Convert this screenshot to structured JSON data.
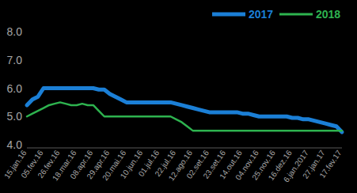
{
  "chart_data": {
    "type": "line",
    "categories": [
      "15.jan.16",
      null,
      null,
      "05.fev.16",
      null,
      null,
      "26.fev.16",
      null,
      null,
      "18.mar.16",
      null,
      null,
      "08.apr.16",
      null,
      null,
      "29.apr.16",
      null,
      null,
      "20.mai.16",
      null,
      null,
      "10.jun.16",
      null,
      null,
      "01.jul.16",
      null,
      null,
      "22.jul.16",
      null,
      null,
      "12.ago.16",
      null,
      null,
      "02.set.16",
      null,
      null,
      "23.set.16",
      null,
      null,
      "14.out.16",
      null,
      null,
      "04.nov.16",
      null,
      null,
      "25.nov.16",
      null,
      null,
      "16.dez.16",
      null,
      null,
      "6.jan.2017",
      null,
      null,
      "27.jan.17",
      null,
      null,
      "17.fev.17"
    ],
    "series": [
      {
        "name": "2017",
        "color": "#1b7fd6",
        "values": [
          5.4,
          5.6,
          5.7,
          6.0,
          6.0,
          6.0,
          6.0,
          6.0,
          6.0,
          6.0,
          6.0,
          6.0,
          6.0,
          5.95,
          5.95,
          5.8,
          5.7,
          5.6,
          5.5,
          5.5,
          5.5,
          5.5,
          5.5,
          5.5,
          5.5,
          5.5,
          5.5,
          5.45,
          5.4,
          5.35,
          5.3,
          5.25,
          5.2,
          5.15,
          5.15,
          5.15,
          5.15,
          5.15,
          5.15,
          5.1,
          5.1,
          5.05,
          5.0,
          5.0,
          5.0,
          5.0,
          5.0,
          5.0,
          4.95,
          4.95,
          4.9,
          4.9,
          4.85,
          4.8,
          4.75,
          4.7,
          4.65,
          4.45
        ]
      },
      {
        "name": "2018",
        "color": "#2eb34f",
        "values": [
          5.0,
          5.1,
          5.2,
          5.3,
          5.4,
          5.45,
          5.5,
          5.45,
          5.4,
          5.4,
          5.45,
          5.4,
          5.4,
          5.2,
          5.0,
          5.0,
          5.0,
          5.0,
          5.0,
          5.0,
          5.0,
          5.0,
          5.0,
          5.0,
          5.0,
          5.0,
          5.0,
          4.9,
          4.8,
          4.65,
          4.5,
          4.5,
          4.5,
          4.5,
          4.5,
          4.5,
          4.5,
          4.5,
          4.5,
          4.5,
          4.5,
          4.5,
          4.5,
          4.5,
          4.5,
          4.5,
          4.5,
          4.5,
          4.5,
          4.5,
          4.5,
          4.5,
          4.5,
          4.5,
          4.5,
          4.5,
          4.5,
          4.5
        ]
      }
    ],
    "ylim": [
      4,
      8
    ],
    "yticks": [
      {
        "value": 4,
        "label": "4.0"
      },
      {
        "value": 5,
        "label": "5.0"
      },
      {
        "value": 6,
        "label": "6.0"
      },
      {
        "value": 7,
        "label": "7.0"
      },
      {
        "value": 8,
        "label": "8.0"
      }
    ],
    "grid": false,
    "legend": "top-right"
  }
}
